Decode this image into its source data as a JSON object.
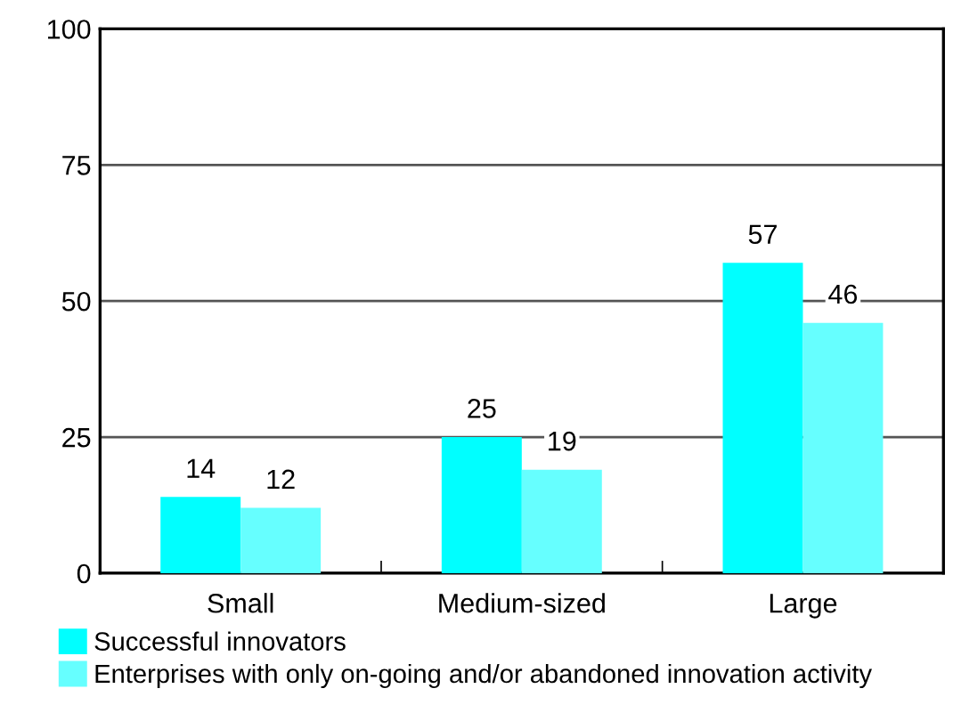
{
  "chart_data": {
    "type": "bar",
    "categories": [
      "Small",
      "Medium-sized",
      "Large"
    ],
    "series": [
      {
        "name": "Successful innovators",
        "color": "#00ffff",
        "values": [
          14,
          25,
          57
        ]
      },
      {
        "name": "Enterprises with only on-going and/or abandoned innovation activity",
        "color": "#66ffff",
        "values": [
          12,
          19,
          46
        ]
      }
    ],
    "ylim": [
      0,
      100
    ],
    "yticks": [
      0,
      25,
      50,
      75,
      100
    ],
    "grid": "y",
    "legend": "bottom left",
    "data_labels": true
  }
}
